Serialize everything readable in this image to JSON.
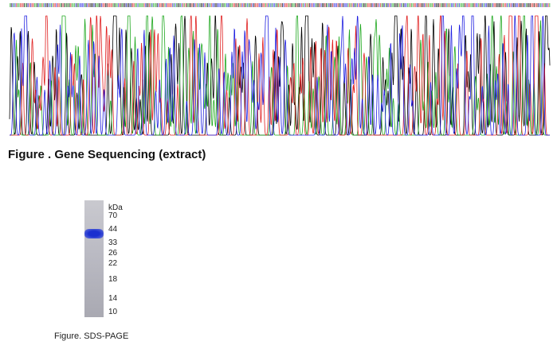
{
  "figures": {
    "sequencing_caption": "Figure . Gene Sequencing (extract)",
    "gel": {
      "unit_label": "kDa",
      "markers": [
        70,
        44,
        33,
        26,
        22,
        18,
        14,
        10
      ]
    },
    "gel_caption": "Figure. SDS-PAGE"
  }
}
